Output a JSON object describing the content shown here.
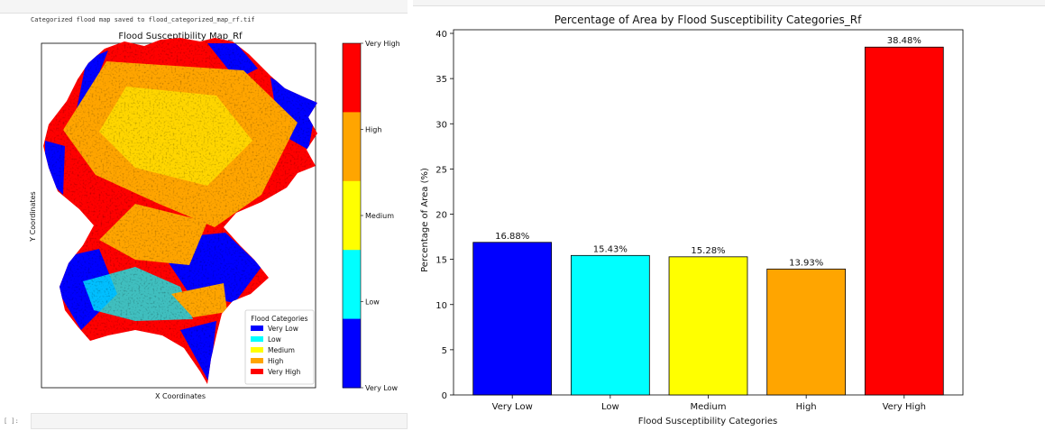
{
  "notebook": {
    "output_text": "Categorized flood map saved to flood_categorized_map_rf.tif",
    "input_prompt": "[ ]:"
  },
  "map": {
    "title": "Flood Susceptibility Map_Rf",
    "xlabel": "X Coordinates",
    "ylabel": "Y Coordinates",
    "legend_title": "Flood Categories",
    "legend_items": [
      {
        "label": "Very Low",
        "color": "#0000ff"
      },
      {
        "label": "Low",
        "color": "#00ffff"
      },
      {
        "label": "Medium",
        "color": "#ffff00"
      },
      {
        "label": "High",
        "color": "#ffa500"
      },
      {
        "label": "Very High",
        "color": "#ff0000"
      }
    ],
    "colorbar_labels": [
      "Very High",
      "High",
      "Medium",
      "Low",
      "Very Low"
    ],
    "colorbar_colors": [
      "#ff0000",
      "#ffa500",
      "#ffff00",
      "#00ffff",
      "#0000ff"
    ]
  },
  "chart_data": {
    "type": "bar",
    "title": "Percentage of Area by Flood Susceptibility Categories_Rf",
    "xlabel": "Flood Susceptibility Categories",
    "ylabel": "Percentage of Area (%)",
    "categories": [
      "Very Low",
      "Low",
      "Medium",
      "High",
      "Very High"
    ],
    "values": [
      16.88,
      15.43,
      15.28,
      13.93,
      38.48
    ],
    "value_labels": [
      "16.88%",
      "15.43%",
      "15.28%",
      "13.93%",
      "38.48%"
    ],
    "colors": [
      "#0000ff",
      "#00ffff",
      "#ffff00",
      "#ffa500",
      "#ff0000"
    ],
    "ylim": [
      0,
      40.4
    ],
    "yticks": [
      0,
      5,
      10,
      15,
      20,
      25,
      30,
      35,
      40
    ],
    "grid": false
  }
}
